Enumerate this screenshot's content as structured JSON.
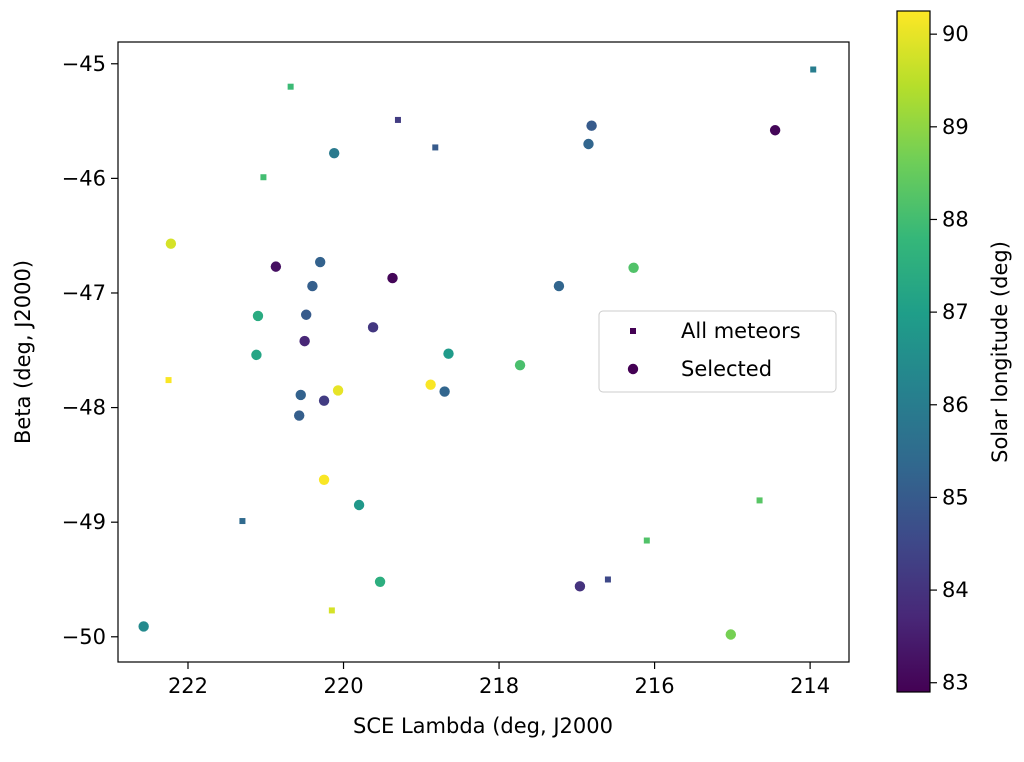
{
  "chart_data": {
    "type": "scatter",
    "xlabel": "SCE Lambda (deg, J2000",
    "ylabel": "Beta (deg, J2000)",
    "colorbar_label": "Solar longitude (deg)",
    "xlim": [
      222.9,
      213.5
    ],
    "ylim": [
      -50.22,
      -44.81
    ],
    "x_ticks": [
      222,
      220,
      218,
      216,
      214
    ],
    "y_ticks": [
      -45,
      -46,
      -47,
      -48,
      -49,
      -50
    ],
    "x_tick_labels": [
      "222",
      "220",
      "218",
      "216",
      "214"
    ],
    "y_tick_labels": [
      "−45",
      "−46",
      "−47",
      "−48",
      "−49",
      "−50"
    ],
    "colorbar_range": [
      82.9,
      90.25
    ],
    "colorbar_ticks": [
      83,
      84,
      85,
      86,
      87,
      88,
      89,
      90
    ],
    "colorbar_tick_labels": [
      "83",
      "84",
      "85",
      "86",
      "87",
      "88",
      "89",
      "90"
    ],
    "colormap": [
      "#440154",
      "#482878",
      "#3e4989",
      "#31688e",
      "#26828e",
      "#1f9e89",
      "#35b779",
      "#6ece58",
      "#b5de2b",
      "#fde725"
    ],
    "legend": {
      "position": "center-right",
      "entries": [
        "All meteors",
        "Selected"
      ]
    },
    "series": [
      {
        "name": "All meteors",
        "marker": "square",
        "points": [
          {
            "x": 220.68,
            "y": -45.2,
            "c": 87.9
          },
          {
            "x": 219.3,
            "y": -45.49,
            "c": 84.2
          },
          {
            "x": 218.82,
            "y": -45.73,
            "c": 85.0
          },
          {
            "x": 221.03,
            "y": -45.99,
            "c": 88.0
          },
          {
            "x": 213.96,
            "y": -45.05,
            "c": 86.0
          },
          {
            "x": 222.25,
            "y": -47.76,
            "c": 90.2
          },
          {
            "x": 221.3,
            "y": -48.99,
            "c": 85.4
          },
          {
            "x": 220.15,
            "y": -49.77,
            "c": 89.8
          },
          {
            "x": 216.6,
            "y": -49.5,
            "c": 84.5
          },
          {
            "x": 216.1,
            "y": -49.16,
            "c": 88.2
          },
          {
            "x": 214.65,
            "y": -48.81,
            "c": 88.3
          }
        ]
      },
      {
        "name": "Selected",
        "marker": "circle",
        "points": [
          {
            "x": 222.22,
            "y": -46.57,
            "c": 89.8
          },
          {
            "x": 220.12,
            "y": -45.78,
            "c": 85.9
          },
          {
            "x": 220.87,
            "y": -46.77,
            "c": 83.2
          },
          {
            "x": 220.3,
            "y": -46.73,
            "c": 85.2
          },
          {
            "x": 220.4,
            "y": -46.94,
            "c": 85.1
          },
          {
            "x": 219.37,
            "y": -46.87,
            "c": 83.0
          },
          {
            "x": 221.1,
            "y": -47.2,
            "c": 87.4
          },
          {
            "x": 220.48,
            "y": -47.19,
            "c": 85.0
          },
          {
            "x": 219.62,
            "y": -47.3,
            "c": 84.1
          },
          {
            "x": 220.5,
            "y": -47.42,
            "c": 83.7
          },
          {
            "x": 221.12,
            "y": -47.54,
            "c": 87.2
          },
          {
            "x": 218.65,
            "y": -47.53,
            "c": 86.9
          },
          {
            "x": 217.73,
            "y": -47.63,
            "c": 88.1
          },
          {
            "x": 220.07,
            "y": -47.85,
            "c": 90.0
          },
          {
            "x": 220.55,
            "y": -47.89,
            "c": 85.2
          },
          {
            "x": 220.25,
            "y": -47.94,
            "c": 84.2
          },
          {
            "x": 218.88,
            "y": -47.8,
            "c": 90.2
          },
          {
            "x": 218.7,
            "y": -47.86,
            "c": 85.3
          },
          {
            "x": 220.57,
            "y": -48.07,
            "c": 85.1
          },
          {
            "x": 220.25,
            "y": -48.63,
            "c": 90.2
          },
          {
            "x": 219.8,
            "y": -48.85,
            "c": 86.8
          },
          {
            "x": 219.53,
            "y": -49.52,
            "c": 87.5
          },
          {
            "x": 222.57,
            "y": -49.91,
            "c": 86.4
          },
          {
            "x": 216.96,
            "y": -49.56,
            "c": 84.0
          },
          {
            "x": 215.02,
            "y": -49.98,
            "c": 88.7
          },
          {
            "x": 217.23,
            "y": -46.94,
            "c": 85.3
          },
          {
            "x": 216.27,
            "y": -46.78,
            "c": 88.2
          },
          {
            "x": 216.81,
            "y": -45.54,
            "c": 85.0
          },
          {
            "x": 216.85,
            "y": -45.7,
            "c": 85.3
          },
          {
            "x": 214.45,
            "y": -45.58,
            "c": 83.0
          }
        ]
      }
    ]
  }
}
